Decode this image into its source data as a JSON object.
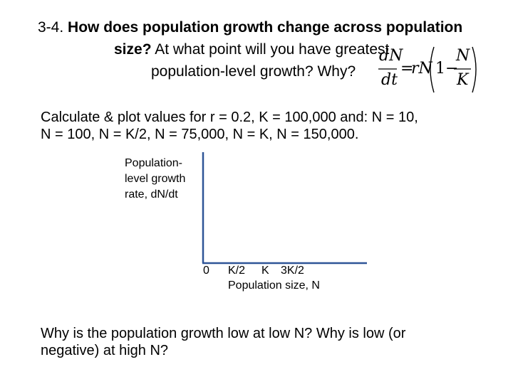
{
  "slide": {
    "title_line1_prefix": "3-4. ",
    "title_line1_bold": "How does population growth change across population",
    "title_line2_bold": "size?",
    "title_line2_rest": " At what point will you have greatest",
    "title_line3": "population-level growth? Why?",
    "equation": {
      "dN": "dN",
      "dt": "dt",
      "equals": "=",
      "rN": "rN",
      "one_minus": "1−",
      "N": "N",
      "K": "K"
    },
    "instruction_line1": "Calculate & plot values for r = 0.2, K = 100,000 and: N = 10,",
    "instruction_line2": "N = 100, N = K/2, N = 75,000, N = K, N = 150,000.",
    "question_line1": "Why is the population growth low at low N? Why is low (or",
    "question_line2": "negative) at high N?"
  },
  "chart_data": {
    "type": "line",
    "title": "",
    "ylabel_lines": [
      "Population-",
      "level growth",
      "rate, dN/dt"
    ],
    "xlabel": "Population size, N",
    "x_tick_labels": [
      "0",
      "K/2",
      "K",
      "3K/2"
    ],
    "series": []
  }
}
